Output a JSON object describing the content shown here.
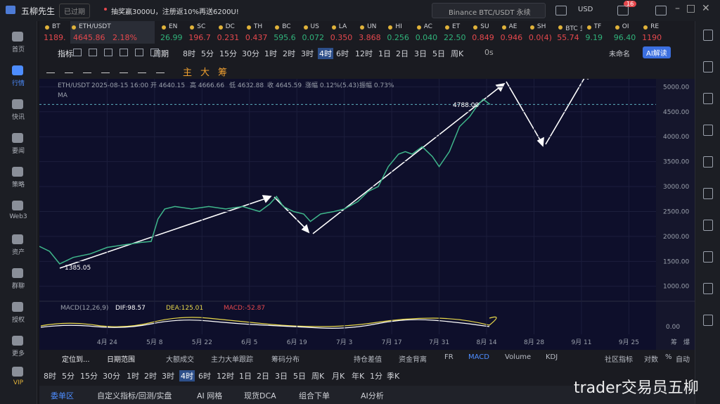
{
  "app": {
    "title": "五柳先生",
    "status": "已过期",
    "promo": "抽奖赢3000U，注册返10%再送6200U!",
    "search": "Binance BTC/USDT 永续",
    "currency": "USD",
    "badge": "16"
  },
  "sidebar": [
    "首页",
    "行情",
    "快讯",
    "要闻",
    "策略",
    "Web3",
    "资产",
    "群聊",
    "授权",
    "更多",
    "VIP"
  ],
  "tickers": [
    {
      "symbol": "BT",
      "price": "1189.",
      "color": "#e5484d"
    },
    {
      "symbol": "ETH/USDT",
      "price": "4645.86",
      "change": "2.18%",
      "color": "#e5484d"
    },
    {
      "symbol": "EN",
      "price": "26.99",
      "color": "#30b27a"
    },
    {
      "symbol": "SC",
      "price": "196.7",
      "color": "#e5484d"
    },
    {
      "symbol": "DC",
      "price": "0.231",
      "color": "#e5484d"
    },
    {
      "symbol": "TH",
      "price": "0.437",
      "color": "#e5484d"
    },
    {
      "symbol": "BC",
      "price": "595.6",
      "color": "#30b27a"
    },
    {
      "symbol": "US",
      "price": "0.072",
      "color": "#30b27a"
    },
    {
      "symbol": "LA",
      "price": "0.350",
      "color": "#e5484d"
    },
    {
      "symbol": "UN",
      "price": "3.868",
      "color": "#e5484d"
    },
    {
      "symbol": "HI",
      "price": "0.256",
      "color": "#30b27a"
    },
    {
      "symbol": "AC",
      "price": "0.040",
      "color": "#30b27a"
    },
    {
      "symbol": "ET",
      "price": "22.50",
      "color": "#30b27a"
    },
    {
      "symbol": "SU",
      "price": "0.849",
      "color": "#e5484d"
    },
    {
      "symbol": "AE",
      "price": "0.946",
      "color": "#e5484d"
    },
    {
      "symbol": "SH",
      "price": "0.0(4)",
      "color": "#e5484d"
    },
    {
      "symbol": "BTC 多",
      "price": "55.74",
      "color": "#e5484d"
    },
    {
      "symbol": "TF",
      "price": "9.19",
      "color": "#30b27a"
    },
    {
      "symbol": "OI",
      "price": "96.40",
      "color": "#30b27a"
    },
    {
      "symbol": "RE",
      "price": "1190",
      "color": "#e5484d"
    }
  ],
  "toolbar": {
    "indicator": "指标",
    "period": "周期",
    "intervals": [
      "8时",
      "5分",
      "15分",
      "30分",
      "1时",
      "2时",
      "3时",
      "4时",
      "6时",
      "12时",
      "1日",
      "2日",
      "3日",
      "5日",
      "周K"
    ],
    "countdown": "0s",
    "layout_name": "未命名",
    "ai": "AI解读"
  },
  "draw_tools": [
    "主",
    "大",
    "筹"
  ],
  "chart_data": {
    "type": "line",
    "symbol": "ETH/USDT",
    "time": "2025-08-15 16:00",
    "ohlc": [
      "开 4640.15",
      "高 4666.66",
      "低 4632.88",
      "收 4645.59",
      "涨幅 0.12%(5.43)",
      "振幅 0.73%"
    ],
    "ma": "MA",
    "x": [
      -20,
      -17,
      -14,
      -10,
      -5,
      0,
      5,
      10,
      13,
      15,
      17,
      20,
      25,
      30,
      35,
      40,
      45,
      48,
      50,
      52,
      55,
      58,
      60,
      63,
      67,
      70,
      74,
      77,
      80,
      83,
      86,
      88,
      90,
      93,
      96,
      98,
      101,
      104,
      107,
      109,
      111,
      113
    ],
    "values": [
      1800,
      1700,
      1450,
      1580,
      1650,
      1780,
      1830,
      1880,
      1900,
      2350,
      2550,
      2600,
      2550,
      2600,
      2550,
      2600,
      2500,
      2650,
      2800,
      2600,
      2500,
      2450,
      2300,
      2450,
      2500,
      2550,
      2700,
      2900,
      3000,
      3400,
      3650,
      3700,
      3650,
      3800,
      3600,
      3400,
      3700,
      4200,
      4400,
      4600,
      4750,
      4646
    ],
    "color": "#3fb68b",
    "price_line": 4645.86,
    "low_label": "1385.05",
    "high_label": "4788.00",
    "xlim": [
      -20,
      162
    ],
    "xticks": [
      {
        "value": 0,
        "label": "4月 24"
      },
      {
        "value": 14,
        "label": "5月 8"
      },
      {
        "value": 28,
        "label": "5月 22"
      },
      {
        "value": 42,
        "label": "6月 5"
      },
      {
        "value": 56,
        "label": "6月 19"
      },
      {
        "value": 70,
        "label": "7月 3"
      },
      {
        "value": 84,
        "label": "7月 17"
      },
      {
        "value": 98,
        "label": "7月 31"
      },
      {
        "value": 112,
        "label": "8月 14"
      },
      {
        "value": 126,
        "label": "8月 28"
      },
      {
        "value": 140,
        "label": "9月 11"
      },
      {
        "value": 154,
        "label": "9月 25"
      }
    ],
    "ylim": [
      700,
      5160
    ],
    "yticks": [
      {
        "value": 1000,
        "label": "1000.00"
      },
      {
        "value": 1500,
        "label": "1500.00"
      },
      {
        "value": 2000,
        "label": "2000.00"
      },
      {
        "value": 2500,
        "label": "2500.00"
      },
      {
        "value": 3000,
        "label": "3000.00"
      },
      {
        "value": 3500,
        "label": "3500.00"
      },
      {
        "value": 4000,
        "label": "4000.00"
      },
      {
        "value": 4500,
        "label": "4500.00"
      },
      {
        "value": 5000,
        "label": "5000.00"
      }
    ],
    "grid": true
  },
  "macd": {
    "label": "MACD(12,26,9)",
    "dif": "DIF:98.57",
    "dea": "DEA:125.01",
    "macd": "MACD:-52.87",
    "zero": "0.00"
  },
  "axis_extra": [
    "筹",
    "爆"
  ],
  "bottom_toolbar": [
    "定位到...",
    "日期范围",
    "大额成交",
    "主力大单跟踪",
    "筹码分布",
    "持仓差值",
    "资金背离",
    "FR",
    "MACD",
    "Volume",
    "KDJ",
    "社区指标",
    "对数",
    "%",
    "自动"
  ],
  "intervals2": [
    "8时",
    "5分",
    "15分",
    "30分",
    "1时",
    "2时",
    "3时",
    "4时",
    "6时",
    "12时",
    "1日",
    "2日",
    "3日",
    "5日",
    "周K",
    "月K",
    "年K",
    "1分",
    "季K"
  ],
  "tabs": [
    "委单区",
    "自定义指标/回测/实盘",
    "AI 网格",
    "现货DCA",
    "组合下单",
    "AI分析"
  ],
  "watermark": "trader交易员五柳"
}
